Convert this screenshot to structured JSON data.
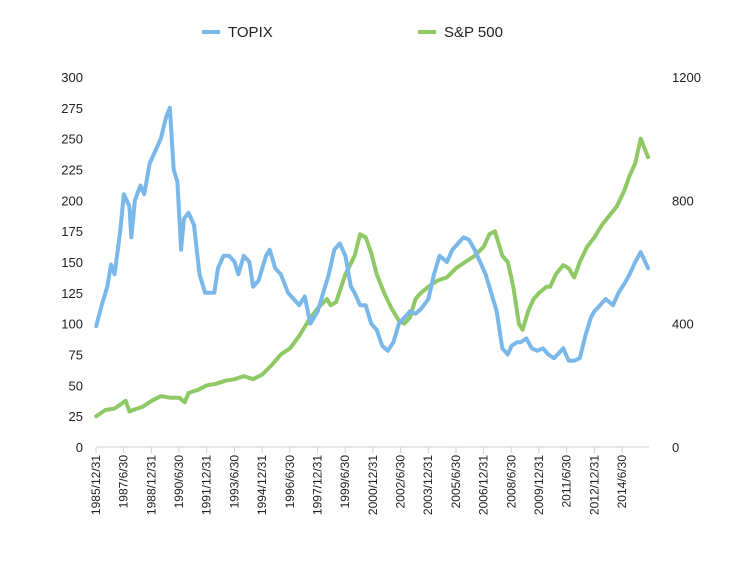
{
  "chart_data": {
    "type": "line",
    "title": "",
    "xlabel": "",
    "ylabel_left": "",
    "ylabel_right": "",
    "x_tick_labels": [
      "1985/12/31",
      "1987/6/30",
      "1988/12/31",
      "1990/6/30",
      "1991/12/31",
      "1993/6/30",
      "1994/12/31",
      "1996/6/30",
      "1997/12/31",
      "1999/6/30",
      "2000/12/31",
      "2002/6/30",
      "2003/12/31",
      "2005/6/30",
      "2006/12/31",
      "2008/6/30",
      "2009/12/31",
      "2011/6/30",
      "2012/12/31",
      "2014/6/30"
    ],
    "x_range": [
      1985.99,
      2015.95
    ],
    "ylim_left": [
      0,
      300
    ],
    "ylim_right": [
      0,
      1200
    ],
    "left_ticks": [
      "0",
      "25",
      "50",
      "75",
      "100",
      "125",
      "150",
      "175",
      "200",
      "225",
      "250",
      "275",
      "300"
    ],
    "right_ticks": [
      "0",
      "400",
      "800",
      "1200"
    ],
    "legend_position": "top",
    "series": [
      {
        "name": "TOPIX",
        "axis": "left",
        "color": "#7ab8ea",
        "x": [
          1986.0,
          1986.3,
          1986.6,
          1986.8,
          1987.0,
          1987.3,
          1987.5,
          1987.8,
          1987.9,
          1988.1,
          1988.4,
          1988.6,
          1988.9,
          1989.2,
          1989.5,
          1989.8,
          1989.99,
          1990.2,
          1990.4,
          1990.6,
          1990.75,
          1991.0,
          1991.3,
          1991.6,
          1991.9,
          1992.1,
          1992.4,
          1992.6,
          1992.9,
          1993.2,
          1993.5,
          1993.7,
          1994.0,
          1994.3,
          1994.5,
          1994.8,
          1995.2,
          1995.4,
          1995.7,
          1996.0,
          1996.4,
          1996.7,
          1997.0,
          1997.3,
          1997.6,
          1998.0,
          1998.3,
          1998.6,
          1998.9,
          1999.2,
          1999.5,
          1999.8,
          2000.0,
          2000.3,
          2000.6,
          2000.9,
          2001.2,
          2001.5,
          2001.8,
          2002.1,
          2002.4,
          2002.7,
          2003.0,
          2003.3,
          2003.6,
          2004.0,
          2004.3,
          2004.6,
          2005.0,
          2005.3,
          2005.6,
          2005.9,
          2006.2,
          2006.5,
          2006.8,
          2007.1,
          2007.4,
          2007.7,
          2008.0,
          2008.3,
          2008.5,
          2008.8,
          2009.0,
          2009.3,
          2009.6,
          2009.9,
          2010.2,
          2010.5,
          2010.8,
          2011.0,
          2011.3,
          2011.6,
          2011.9,
          2012.2,
          2012.5,
          2012.8,
          2013.0,
          2013.3,
          2013.6,
          2014.0,
          2014.3,
          2014.6,
          2014.9,
          2015.2,
          2015.5,
          2015.9
        ],
        "values": [
          98,
          115,
          130,
          148,
          140,
          175,
          205,
          195,
          170,
          200,
          212,
          205,
          230,
          240,
          250,
          268,
          275,
          225,
          215,
          160,
          185,
          190,
          180,
          140,
          125,
          125,
          125,
          145,
          155,
          155,
          150,
          140,
          155,
          150,
          130,
          135,
          155,
          160,
          145,
          140,
          125,
          120,
          115,
          122,
          100,
          110,
          125,
          140,
          160,
          165,
          155,
          130,
          125,
          115,
          115,
          100,
          95,
          82,
          78,
          85,
          100,
          105,
          110,
          108,
          112,
          120,
          140,
          155,
          150,
          160,
          165,
          170,
          168,
          160,
          150,
          140,
          125,
          110,
          80,
          75,
          82,
          85,
          85,
          88,
          80,
          78,
          80,
          75,
          72,
          75,
          80,
          70,
          70,
          72,
          90,
          105,
          110,
          115,
          120,
          115,
          125,
          132,
          140,
          150,
          158,
          145
        ],
        "approximate": true
      },
      {
        "name": "S&P 500",
        "axis": "right",
        "color": "#8fc965",
        "x": [
          1986.0,
          1986.5,
          1987.0,
          1987.6,
          1987.8,
          1988.0,
          1988.5,
          1989.0,
          1989.5,
          1990.0,
          1990.5,
          1990.8,
          1991.0,
          1991.5,
          1992.0,
          1992.5,
          1993.0,
          1993.5,
          1994.0,
          1994.5,
          1995.0,
          1995.5,
          1996.0,
          1996.5,
          1997.0,
          1997.5,
          1998.0,
          1998.5,
          1998.7,
          1999.0,
          1999.5,
          2000.0,
          2000.3,
          2000.6,
          2000.9,
          2001.2,
          2001.6,
          2002.0,
          2002.4,
          2002.7,
          2003.0,
          2003.3,
          2003.6,
          2004.0,
          2004.5,
          2005.0,
          2005.5,
          2006.0,
          2006.5,
          2007.0,
          2007.3,
          2007.6,
          2008.0,
          2008.3,
          2008.6,
          2008.9,
          2009.1,
          2009.4,
          2009.7,
          2010.0,
          2010.4,
          2010.6,
          2010.9,
          2011.3,
          2011.6,
          2011.9,
          2012.2,
          2012.6,
          2013.0,
          2013.4,
          2013.8,
          2014.2,
          2014.6,
          2014.9,
          2015.2,
          2015.5,
          2015.9
        ],
        "values": [
          100,
          120,
          125,
          150,
          115,
          120,
          130,
          150,
          165,
          160,
          160,
          145,
          175,
          185,
          200,
          205,
          215,
          220,
          230,
          220,
          235,
          265,
          300,
          320,
          360,
          410,
          450,
          480,
          460,
          470,
          560,
          620,
          690,
          680,
          630,
          560,
          500,
          450,
          410,
          400,
          420,
          480,
          500,
          520,
          540,
          550,
          580,
          600,
          620,
          650,
          690,
          700,
          620,
          600,
          520,
          400,
          380,
          440,
          480,
          500,
          520,
          520,
          560,
          590,
          580,
          550,
          600,
          650,
          680,
          720,
          750,
          780,
          830,
          880,
          920,
          1000,
          940
        ],
        "approximate": true
      }
    ]
  }
}
